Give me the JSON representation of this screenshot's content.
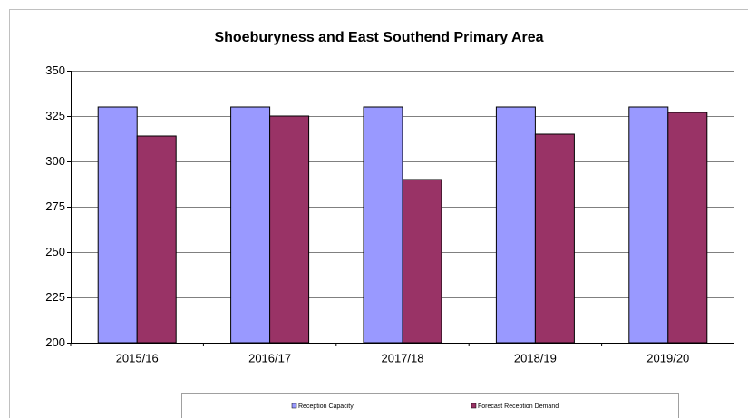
{
  "chart_data": {
    "type": "bar",
    "title": "Shoeburyness and East Southend Primary Area",
    "categories": [
      "2015/16",
      "2016/17",
      "2017/18",
      "2018/19",
      "2019/20"
    ],
    "series": [
      {
        "name": "Reception Capacity",
        "color": "#9999ff",
        "values": [
          330,
          330,
          330,
          330,
          330
        ]
      },
      {
        "name": "Forecast Reception Demand",
        "color": "#993366",
        "values": [
          314,
          325,
          290,
          315,
          327
        ]
      }
    ],
    "ylim": [
      200,
      350
    ],
    "yticks": [
      200,
      225,
      250,
      275,
      300,
      325,
      350
    ],
    "grid": true
  }
}
